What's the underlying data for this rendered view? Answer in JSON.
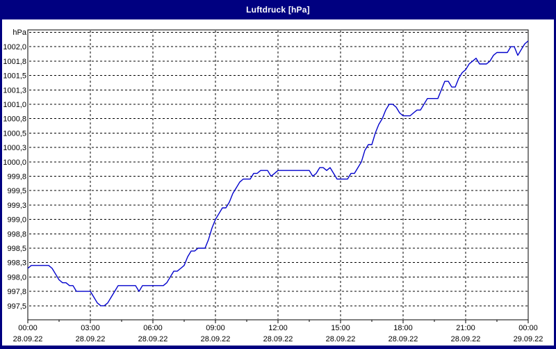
{
  "window": {
    "title": "Luftdruck [hPa]"
  },
  "colors": {
    "window_background": "#000080",
    "panel_background": "#ffffff",
    "grid_color": "#000000",
    "line_color": "#0000cc",
    "title_text": "#ffffff",
    "axis_text": "#000000"
  },
  "chart_data": {
    "type": "line",
    "title": "Luftdruck [hPa]",
    "unit_label": "hPa",
    "grid": true,
    "legend": "none",
    "y_axis": {
      "min": 997.5,
      "max": 1002.25,
      "gridline_step": 0.25,
      "grid_values": [
        1002.25,
        1002.0,
        1001.75,
        1001.5,
        1001.25,
        1001.0,
        1000.75,
        1000.5,
        1000.25,
        1000.0,
        999.75,
        999.5,
        999.25,
        999.0,
        998.75,
        998.5,
        998.25,
        998.0,
        997.75,
        997.5
      ],
      "labels": [
        {
          "text": "1002,0",
          "value": 1002.0
        },
        {
          "text": "1001,8",
          "value": 1001.75
        },
        {
          "text": "1001,5",
          "value": 1001.5
        },
        {
          "text": "1001,3",
          "value": 1001.25
        },
        {
          "text": "1001,0",
          "value": 1001.0
        },
        {
          "text": "1000,8",
          "value": 1000.75
        },
        {
          "text": "1000,5",
          "value": 1000.5
        },
        {
          "text": "1000,3",
          "value": 1000.25
        },
        {
          "text": "1000,0",
          "value": 1000.0
        },
        {
          "text": "999,8",
          "value": 999.75
        },
        {
          "text": "999,5",
          "value": 999.5
        },
        {
          "text": "999,3",
          "value": 999.25
        },
        {
          "text": "999,0",
          "value": 999.0
        },
        {
          "text": "998,8",
          "value": 998.75
        },
        {
          "text": "998,5",
          "value": 998.5
        },
        {
          "text": "998,3",
          "value": 998.25
        },
        {
          "text": "998,0",
          "value": 998.0
        },
        {
          "text": "997,8",
          "value": 997.75
        },
        {
          "text": "997,5",
          "value": 997.5
        }
      ]
    },
    "x_axis": {
      "hours_start": 0,
      "hours_end": 24,
      "gridline_hours": [
        3,
        6,
        9,
        12,
        15,
        18,
        21
      ],
      "major_tick_hours": [
        0,
        3,
        6,
        9,
        12,
        15,
        18,
        21,
        24
      ],
      "minor_tick_hours": [
        1.5,
        4.5,
        7.5,
        10.5,
        13.5,
        16.5,
        19.5,
        22.5
      ],
      "labels": [
        {
          "hour": 0,
          "time": "00:00",
          "date": "28.09.22"
        },
        {
          "hour": 3,
          "time": "03:00",
          "date": "28.09.22"
        },
        {
          "hour": 6,
          "time": "06:00",
          "date": "28.09.22"
        },
        {
          "hour": 9,
          "time": "09:00",
          "date": "28.09.22"
        },
        {
          "hour": 12,
          "time": "12:00",
          "date": "28.09.22"
        },
        {
          "hour": 15,
          "time": "15:00",
          "date": "28.09.22"
        },
        {
          "hour": 18,
          "time": "18:00",
          "date": "28.09.22"
        },
        {
          "hour": 21,
          "time": "21:00",
          "date": "28.09.22"
        },
        {
          "hour": 24,
          "time": "00:00",
          "date": "29.09.22"
        }
      ]
    },
    "series": [
      {
        "name": "Luftdruck",
        "sample_interval_minutes": 10,
        "start_minute": 0,
        "values": [
          998.15,
          998.2,
          998.2,
          998.2,
          998.2,
          998.2,
          998.2,
          998.15,
          998.05,
          997.95,
          997.9,
          997.9,
          997.85,
          997.85,
          997.75,
          997.75,
          997.75,
          997.75,
          997.75,
          997.65,
          997.55,
          997.5,
          997.5,
          997.55,
          997.65,
          997.75,
          997.85,
          997.85,
          997.85,
          997.85,
          997.85,
          997.85,
          997.75,
          997.85,
          997.85,
          997.85,
          997.85,
          997.85,
          997.85,
          997.85,
          997.9,
          998.0,
          998.1,
          998.1,
          998.15,
          998.2,
          998.35,
          998.45,
          998.45,
          998.5,
          998.5,
          998.5,
          998.65,
          998.85,
          999.0,
          999.1,
          999.2,
          999.2,
          999.3,
          999.45,
          999.55,
          999.65,
          999.7,
          999.7,
          999.7,
          999.8,
          999.8,
          999.85,
          999.85,
          999.85,
          999.75,
          999.8,
          999.85,
          999.85,
          999.85,
          999.85,
          999.85,
          999.85,
          999.85,
          999.85,
          999.85,
          999.85,
          999.75,
          999.8,
          999.9,
          999.9,
          999.85,
          999.9,
          999.8,
          999.7,
          999.7,
          999.7,
          999.7,
          999.8,
          999.8,
          999.9,
          1000.0,
          1000.2,
          1000.3,
          1000.3,
          1000.5,
          1000.65,
          1000.75,
          1000.9,
          1001.0,
          1001.0,
          1000.95,
          1000.85,
          1000.8,
          1000.8,
          1000.8,
          1000.85,
          1000.9,
          1000.9,
          1001.0,
          1001.1,
          1001.1,
          1001.1,
          1001.1,
          1001.25,
          1001.4,
          1001.4,
          1001.3,
          1001.3,
          1001.45,
          1001.55,
          1001.6,
          1001.7,
          1001.75,
          1001.8,
          1001.7,
          1001.7,
          1001.7,
          1001.75,
          1001.85,
          1001.9,
          1001.9,
          1001.9,
          1001.9,
          1002.0,
          1002.0,
          1001.85,
          1001.95,
          1002.05,
          1002.1
        ]
      }
    ]
  }
}
